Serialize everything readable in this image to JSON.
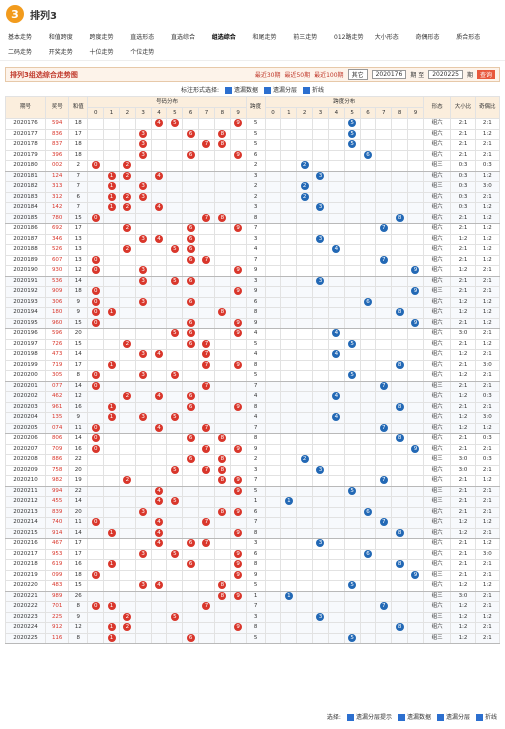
{
  "header": {
    "logo": "3",
    "title": "排列3"
  },
  "nav": [
    "基本走势",
    "和值跨度",
    "跨度走势",
    "直选形态",
    "直选综合",
    "组选综合",
    "和尾走势",
    "前三走势",
    "012路走势",
    "大小形态",
    "奇偶形态",
    "质合形态",
    "二码走势",
    "开奖走势",
    "十位走势",
    "个位走势"
  ],
  "nav_active": 5,
  "titlebar": {
    "title": "排列3组选综合走势图",
    "links": [
      "最近30期",
      "最近50期",
      "最近100期"
    ],
    "select": "其它",
    "from": "2020176",
    "sep": "期 至",
    "to": "2020225",
    "unit": "期",
    "button": "查询"
  },
  "controls": {
    "label": "标注形式选择:",
    "options": [
      "遗漏数据",
      "遗漏分层",
      "折线"
    ]
  },
  "table": {
    "headers": [
      "期号",
      "奖号",
      "和值",
      "号码分布",
      "跨度",
      "跨度分布",
      "形态",
      "大小比",
      "奇偶比"
    ],
    "digits": [
      0,
      1,
      2,
      3,
      4,
      5,
      6,
      7,
      8,
      9
    ],
    "rows": [
      [
        "2020176",
        "594",
        18,
        5,
        "组六",
        "2:1",
        "2:1"
      ],
      [
        "2020177",
        "836",
        17,
        5,
        "组六",
        "2:1",
        "1:2"
      ],
      [
        "2020178",
        "837",
        18,
        5,
        "组六",
        "2:1",
        "2:1"
      ],
      [
        "2020179",
        "396",
        18,
        6,
        "组六",
        "2:1",
        "2:1"
      ],
      [
        "2020180",
        "002",
        2,
        2,
        "组三",
        "0:3",
        "0:3"
      ],
      [
        "2020181",
        "124",
        7,
        3,
        "组六",
        "0:3",
        "1:2"
      ],
      [
        "2020182",
        "313",
        7,
        2,
        "组三",
        "0:3",
        "3:0"
      ],
      [
        "2020183",
        "312",
        6,
        2,
        "组六",
        "0:3",
        "2:1"
      ],
      [
        "2020184",
        "142",
        7,
        3,
        "组六",
        "0:3",
        "1:2"
      ],
      [
        "2020185",
        "780",
        15,
        8,
        "组六",
        "2:1",
        "1:2"
      ],
      [
        "2020186",
        "692",
        17,
        7,
        "组六",
        "2:1",
        "1:2"
      ],
      [
        "2020187",
        "346",
        13,
        3,
        "组六",
        "1:2",
        "1:2"
      ],
      [
        "2020188",
        "526",
        13,
        4,
        "组六",
        "2:1",
        "1:2"
      ],
      [
        "2020189",
        "607",
        13,
        7,
        "组六",
        "2:1",
        "1:2"
      ],
      [
        "2020190",
        "930",
        12,
        9,
        "组六",
        "1:2",
        "2:1"
      ],
      [
        "2020191",
        "536",
        14,
        3,
        "组六",
        "2:1",
        "2:1"
      ],
      [
        "2020192",
        "909",
        18,
        9,
        "组三",
        "2:1",
        "2:1"
      ],
      [
        "2020193",
        "306",
        9,
        6,
        "组六",
        "1:2",
        "1:2"
      ],
      [
        "2020194",
        "180",
        9,
        8,
        "组六",
        "1:2",
        "1:2"
      ],
      [
        "2020195",
        "960",
        15,
        9,
        "组六",
        "2:1",
        "1:2"
      ],
      [
        "2020196",
        "596",
        20,
        4,
        "组六",
        "3:0",
        "2:1"
      ],
      [
        "2020197",
        "726",
        15,
        5,
        "组六",
        "2:1",
        "1:2"
      ],
      [
        "2020198",
        "473",
        14,
        4,
        "组六",
        "1:2",
        "2:1"
      ],
      [
        "2020199",
        "719",
        17,
        8,
        "组六",
        "2:1",
        "3:0"
      ],
      [
        "2020200",
        "305",
        8,
        5,
        "组六",
        "1:2",
        "2:1"
      ],
      [
        "2020201",
        "077",
        14,
        7,
        "组三",
        "2:1",
        "2:1"
      ],
      [
        "2020202",
        "462",
        12,
        4,
        "组六",
        "1:2",
        "0:3"
      ],
      [
        "2020203",
        "961",
        16,
        8,
        "组六",
        "2:1",
        "2:1"
      ],
      [
        "2020204",
        "135",
        9,
        4,
        "组六",
        "1:2",
        "3:0"
      ],
      [
        "2020205",
        "074",
        11,
        7,
        "组六",
        "1:2",
        "1:2"
      ],
      [
        "2020206",
        "806",
        14,
        8,
        "组六",
        "2:1",
        "0:3"
      ],
      [
        "2020207",
        "709",
        16,
        9,
        "组六",
        "2:1",
        "2:1"
      ],
      [
        "2020208",
        "886",
        22,
        2,
        "组三",
        "3:0",
        "0:3"
      ],
      [
        "2020209",
        "758",
        20,
        3,
        "组六",
        "3:0",
        "2:1"
      ],
      [
        "2020210",
        "982",
        19,
        7,
        "组六",
        "2:1",
        "1:2"
      ],
      [
        "2020211",
        "994",
        22,
        5,
        "组三",
        "2:1",
        "2:1"
      ],
      [
        "2020212",
        "455",
        14,
        1,
        "组三",
        "2:1",
        "2:1"
      ],
      [
        "2020213",
        "839",
        20,
        6,
        "组六",
        "2:1",
        "2:1"
      ],
      [
        "2020214",
        "740",
        11,
        7,
        "组六",
        "1:2",
        "1:2"
      ],
      [
        "2020215",
        "914",
        14,
        8,
        "组六",
        "1:2",
        "2:1"
      ],
      [
        "2020216",
        "467",
        17,
        3,
        "组六",
        "2:1",
        "1:2"
      ],
      [
        "2020217",
        "953",
        17,
        6,
        "组六",
        "2:1",
        "3:0"
      ],
      [
        "2020218",
        "619",
        16,
        8,
        "组六",
        "2:1",
        "2:1"
      ],
      [
        "2020219",
        "099",
        18,
        9,
        "组三",
        "2:1",
        "2:1"
      ],
      [
        "2020220",
        "483",
        15,
        5,
        "组六",
        "1:2",
        "1:2"
      ],
      [
        "2020221",
        "989",
        26,
        1,
        "组三",
        "3:0",
        "2:1"
      ],
      [
        "2020222",
        "701",
        8,
        7,
        "组六",
        "1:2",
        "2:1"
      ],
      [
        "2020223",
        "225",
        9,
        3,
        "组三",
        "1:2",
        "1:2"
      ],
      [
        "2020224",
        "912",
        12,
        8,
        "组六",
        "1:2",
        "2:1"
      ],
      [
        "2020225",
        "116",
        8,
        5,
        "组三",
        "1:2",
        "2:1"
      ]
    ]
  },
  "footer": {
    "label": "选择:",
    "options": [
      "遗漏分层提示",
      "遗漏数据",
      "遗漏分层",
      "折线"
    ]
  }
}
